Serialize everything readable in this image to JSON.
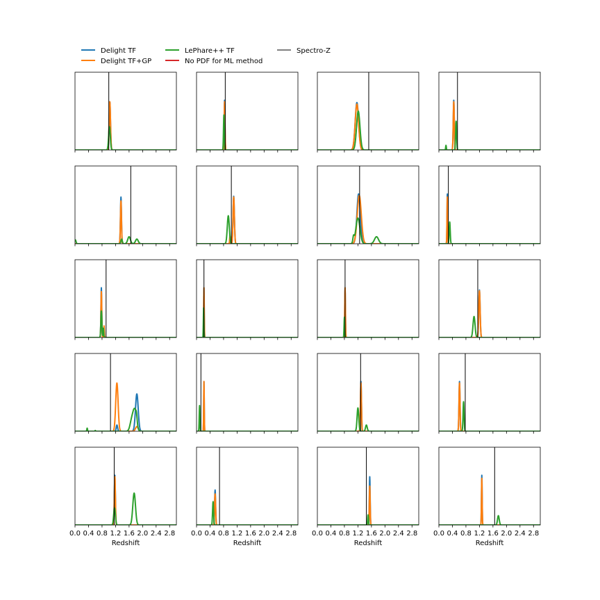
{
  "legend": {
    "placement": "top-left",
    "entries": [
      {
        "label": "Delight TF",
        "color": "#1f77b4"
      },
      {
        "label": "Delight TF+GP",
        "color": "#ff7f0e"
      },
      {
        "label": "LePhare++ TF",
        "color": "#2ca02c"
      },
      {
        "label": "No PDF for ML method",
        "color": "#d62728"
      },
      {
        "label": "Spectro-Z",
        "color": "#000000"
      }
    ]
  },
  "chart_data": {
    "type": "line",
    "layout": "grid",
    "rows": 5,
    "cols": 4,
    "xlabel": "Redshift",
    "xlim": [
      0,
      3.0
    ],
    "xticks": [
      0.0,
      0.4,
      0.8,
      1.2,
      1.6,
      2.0,
      2.4,
      2.8
    ],
    "xtick_labels": [
      "0.0",
      "0.4",
      "0.8",
      "1.2",
      "1.6",
      "2.0",
      "2.4",
      "2.8"
    ],
    "y_ticks_visible": false,
    "grid": false,
    "series_names": [
      "Delight TF",
      "Delight TF+GP",
      "LePhare++ TF"
    ],
    "panels": [
      {
        "spec_z": 1.0,
        "series": [
          {
            "name": "Delight TF",
            "peaks": [
              [
                1.03,
                0.02,
                0.62
              ]
            ]
          },
          {
            "name": "Delight TF+GP",
            "peaks": [
              [
                1.03,
                0.02,
                0.62
              ]
            ]
          },
          {
            "name": "LePhare++ TF",
            "peaks": [
              [
                1.02,
                0.025,
                0.3
              ]
            ]
          }
        ]
      },
      {
        "spec_z": 0.85,
        "series": [
          {
            "name": "Delight TF",
            "peaks": [
              [
                0.83,
                0.012,
                0.64
              ]
            ]
          },
          {
            "name": "Delight TF+GP",
            "peaks": [
              [
                0.83,
                0.012,
                0.62
              ]
            ]
          },
          {
            "name": "LePhare++ TF",
            "peaks": [
              [
                0.81,
                0.012,
                0.45
              ]
            ]
          }
        ]
      },
      {
        "spec_z": 1.52,
        "series": [
          {
            "name": "Delight TF",
            "peaks": [
              [
                1.17,
                0.05,
                0.61
              ]
            ]
          },
          {
            "name": "Delight TF+GP",
            "peaks": [
              [
                1.17,
                0.05,
                0.59
              ]
            ]
          },
          {
            "name": "LePhare++ TF",
            "peaks": [
              [
                1.21,
                0.05,
                0.5
              ]
            ]
          }
        ]
      },
      {
        "spec_z": 0.55,
        "series": [
          {
            "name": "Delight TF",
            "peaks": [
              [
                0.44,
                0.015,
                0.64
              ]
            ]
          },
          {
            "name": "Delight TF+GP",
            "peaks": [
              [
                0.44,
                0.015,
                0.62
              ]
            ]
          },
          {
            "name": "LePhare++ TF",
            "peaks": [
              [
                0.51,
                0.015,
                0.37
              ],
              [
                0.21,
                0.01,
                0.06
              ]
            ]
          }
        ]
      },
      {
        "spec_z": 1.65,
        "series": [
          {
            "name": "Delight TF",
            "peaks": [
              [
                1.36,
                0.015,
                0.6
              ]
            ]
          },
          {
            "name": "Delight TF+GP",
            "peaks": [
              [
                1.36,
                0.015,
                0.55
              ]
            ]
          },
          {
            "name": "LePhare++ TF",
            "peaks": [
              [
                1.38,
                0.02,
                0.06
              ],
              [
                1.6,
                0.04,
                0.09
              ],
              [
                1.83,
                0.04,
                0.06
              ],
              [
                0.01,
                0.02,
                0.05
              ]
            ]
          }
        ]
      },
      {
        "spec_z": 1.03,
        "series": [
          {
            "name": "Delight TF",
            "peaks": [
              [
                1.1,
                0.02,
                0.61
              ]
            ]
          },
          {
            "name": "Delight TF+GP",
            "peaks": [
              [
                1.1,
                0.02,
                0.6
              ],
              [
                0.99,
                0.01,
                0.1
              ]
            ]
          },
          {
            "name": "LePhare++ TF",
            "peaks": [
              [
                0.94,
                0.03,
                0.36
              ]
            ]
          }
        ]
      },
      {
        "spec_z": 1.25,
        "series": [
          {
            "name": "Delight TF",
            "peaks": [
              [
                1.22,
                0.05,
                0.64
              ]
            ]
          },
          {
            "name": "Delight TF+GP",
            "peaks": [
              [
                1.24,
                0.06,
                0.62
              ]
            ]
          },
          {
            "name": "LePhare++ TF",
            "peaks": [
              [
                1.2,
                0.06,
                0.33
              ],
              [
                1.07,
                0.02,
                0.08
              ],
              [
                1.75,
                0.06,
                0.09
              ]
            ]
          }
        ]
      },
      {
        "spec_z": 0.28,
        "series": [
          {
            "name": "Delight TF",
            "peaks": [
              [
                0.25,
                0.01,
                0.64
              ]
            ]
          },
          {
            "name": "Delight TF+GP",
            "peaks": [
              [
                0.25,
                0.01,
                0.6
              ]
            ]
          },
          {
            "name": "LePhare++ TF",
            "peaks": [
              [
                0.32,
                0.015,
                0.28
              ]
            ]
          }
        ]
      },
      {
        "spec_z": 0.92,
        "series": [
          {
            "name": "Delight TF",
            "peaks": [
              [
                0.78,
                0.012,
                0.64
              ]
            ]
          },
          {
            "name": "Delight TF+GP",
            "peaks": [
              [
                0.78,
                0.012,
                0.59
              ],
              [
                0.86,
                0.008,
                0.15
              ]
            ]
          },
          {
            "name": "LePhare++ TF",
            "peaks": [
              [
                0.78,
                0.015,
                0.34
              ],
              [
                0.84,
                0.01,
                0.12
              ]
            ]
          }
        ]
      },
      {
        "spec_z": 0.22,
        "series": [
          {
            "name": "Delight TF",
            "peaks": [
              [
                0.22,
                0.008,
                0.64
              ]
            ]
          },
          {
            "name": "Delight TF+GP",
            "peaks": [
              [
                0.22,
                0.008,
                0.64
              ]
            ]
          },
          {
            "name": "LePhare++ TF",
            "peaks": [
              [
                0.21,
                0.008,
                0.38
              ]
            ]
          }
        ]
      },
      {
        "spec_z": 0.82,
        "series": [
          {
            "name": "Delight TF",
            "peaks": [
              [
                0.82,
                0.01,
                0.64
              ]
            ]
          },
          {
            "name": "Delight TF+GP",
            "peaks": [
              [
                0.82,
                0.01,
                0.64
              ]
            ]
          },
          {
            "name": "LePhare++ TF",
            "peaks": [
              [
                0.8,
                0.01,
                0.26
              ]
            ]
          }
        ]
      },
      {
        "spec_z": 1.15,
        "series": [
          {
            "name": "Delight TF",
            "peaks": [
              [
                1.2,
                0.02,
                0.61
              ]
            ]
          },
          {
            "name": "Delight TF+GP",
            "peaks": [
              [
                1.2,
                0.02,
                0.6
              ]
            ]
          },
          {
            "name": "LePhare++ TF",
            "peaks": [
              [
                1.04,
                0.03,
                0.27
              ]
            ]
          }
        ]
      },
      {
        "spec_z": 1.05,
        "series": [
          {
            "name": "Delight TF",
            "peaks": [
              [
                1.83,
                0.04,
                0.48
              ],
              [
                1.24,
                0.02,
                0.08
              ]
            ]
          },
          {
            "name": "Delight TF+GP",
            "peaks": [
              [
                1.24,
                0.035,
                0.62
              ],
              [
                1.83,
                0.04,
                0.06
              ]
            ]
          },
          {
            "name": "LePhare++ TF",
            "peaks": [
              [
                1.77,
                0.05,
                0.26
              ],
              [
                1.68,
                0.05,
                0.14
              ],
              [
                1.82,
                0.02,
                0.08
              ],
              [
                0.36,
                0.01,
                0.04
              ],
              [
                0.6,
                0.01,
                0.01
              ]
            ]
          }
        ]
      },
      {
        "spec_z": 0.13,
        "series": [
          {
            "name": "Delight TF",
            "peaks": [
              [
                0.22,
                0.008,
                0.64
              ]
            ]
          },
          {
            "name": "Delight TF+GP",
            "peaks": [
              [
                0.22,
                0.008,
                0.64
              ]
            ]
          },
          {
            "name": "LePhare++ TF",
            "peaks": [
              [
                0.09,
                0.01,
                0.33
              ]
            ]
          }
        ]
      },
      {
        "spec_z": 1.28,
        "series": [
          {
            "name": "Delight TF",
            "peaks": [
              [
                1.29,
                0.015,
                0.64
              ]
            ]
          },
          {
            "name": "Delight TF+GP",
            "peaks": [
              [
                1.29,
                0.015,
                0.62
              ]
            ]
          },
          {
            "name": "LePhare++ TF",
            "peaks": [
              [
                1.2,
                0.025,
                0.3
              ],
              [
                1.45,
                0.025,
                0.08
              ]
            ]
          }
        ]
      },
      {
        "spec_z": 0.78,
        "series": [
          {
            "name": "Delight TF",
            "peaks": [
              [
                0.61,
                0.015,
                0.64
              ]
            ]
          },
          {
            "name": "Delight TF+GP",
            "peaks": [
              [
                0.61,
                0.015,
                0.62
              ]
            ]
          },
          {
            "name": "LePhare++ TF",
            "peaks": [
              [
                0.73,
                0.015,
                0.38
              ]
            ]
          }
        ]
      },
      {
        "spec_z": 1.16,
        "series": [
          {
            "name": "Delight TF",
            "peaks": [
              [
                1.18,
                0.015,
                0.64
              ]
            ]
          },
          {
            "name": "Delight TF+GP",
            "peaks": [
              [
                1.18,
                0.015,
                0.62
              ]
            ]
          },
          {
            "name": "LePhare++ TF",
            "peaks": [
              [
                1.17,
                0.025,
                0.22
              ],
              [
                1.75,
                0.04,
                0.41
              ]
            ]
          }
        ]
      },
      {
        "spec_z": 0.68,
        "series": [
          {
            "name": "Delight TF",
            "peaks": [
              [
                0.55,
                0.015,
                0.45
              ]
            ]
          },
          {
            "name": "Delight TF+GP",
            "peaks": [
              [
                0.55,
                0.015,
                0.4
              ]
            ]
          },
          {
            "name": "LePhare++ TF",
            "peaks": [
              [
                0.49,
                0.015,
                0.3
              ]
            ]
          }
        ]
      },
      {
        "spec_z": 1.45,
        "series": [
          {
            "name": "Delight TF",
            "peaks": [
              [
                1.55,
                0.012,
                0.62
              ]
            ]
          },
          {
            "name": "Delight TF+GP",
            "peaks": [
              [
                1.55,
                0.012,
                0.5
              ]
            ]
          },
          {
            "name": "LePhare++ TF",
            "peaks": [
              [
                1.5,
                0.012,
                0.13
              ]
            ]
          }
        ]
      },
      {
        "spec_z": 1.65,
        "series": [
          {
            "name": "Delight TF",
            "peaks": [
              [
                1.27,
                0.01,
                0.64
              ]
            ]
          },
          {
            "name": "Delight TF+GP",
            "peaks": [
              [
                1.27,
                0.01,
                0.6
              ]
            ]
          },
          {
            "name": "LePhare++ TF",
            "peaks": [
              [
                1.76,
                0.025,
                0.12
              ]
            ]
          }
        ]
      }
    ]
  }
}
